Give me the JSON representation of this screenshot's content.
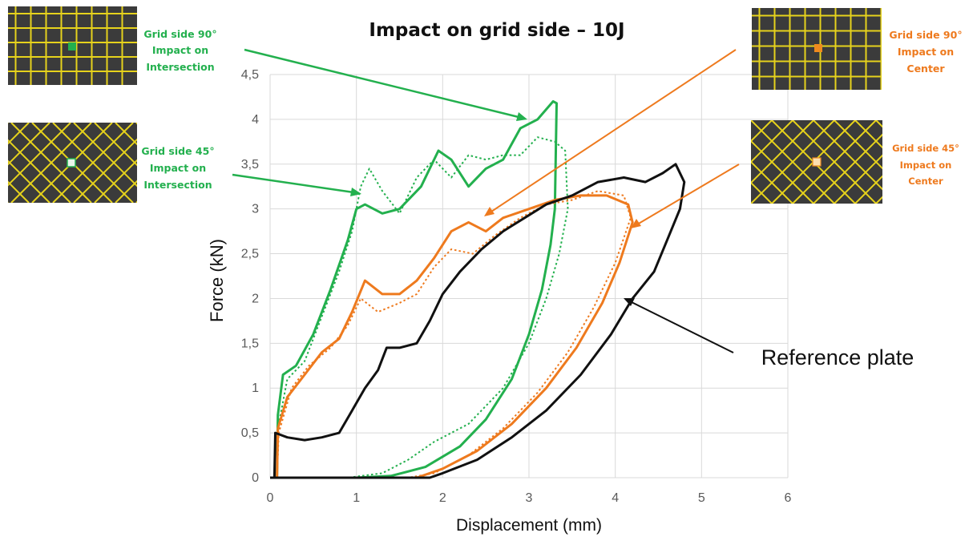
{
  "colors": {
    "green": "#23b04e",
    "orange": "#ee7a1e",
    "black": "#111111",
    "grid": "#d9d9d9",
    "inset_bg": "#3b3b3b",
    "inset_line": "#e6d21c"
  },
  "chart_data": {
    "type": "line",
    "title": "Impact on grid side – 10J",
    "xlabel": "Displacement (mm)",
    "ylabel": "Force (kN)",
    "xlim": [
      0,
      6
    ],
    "ylim": [
      0,
      4.5
    ],
    "x_ticks": [
      "0",
      "1",
      "2",
      "3",
      "4",
      "5",
      "6"
    ],
    "y_ticks": [
      "0",
      "0,5",
      "1",
      "1,5",
      "2",
      "2,5",
      "3",
      "3,5",
      "4",
      "4,5"
    ],
    "grid": true,
    "series": [
      {
        "color": "green",
        "style": "solid",
        "points": [
          [
            0.08,
            0
          ],
          [
            0.09,
            0.7
          ],
          [
            0.15,
            1.15
          ],
          [
            0.3,
            1.25
          ],
          [
            0.5,
            1.6
          ],
          [
            0.7,
            2.1
          ],
          [
            0.9,
            2.65
          ],
          [
            1.0,
            3.0
          ],
          [
            1.1,
            3.05
          ],
          [
            1.3,
            2.95
          ],
          [
            1.5,
            3.0
          ],
          [
            1.75,
            3.25
          ],
          [
            1.95,
            3.65
          ],
          [
            2.1,
            3.55
          ],
          [
            2.3,
            3.25
          ],
          [
            2.5,
            3.45
          ],
          [
            2.7,
            3.55
          ],
          [
            2.9,
            3.9
          ],
          [
            3.1,
            4.0
          ],
          [
            3.28,
            4.2
          ],
          [
            3.32,
            4.18
          ],
          [
            3.3,
            3.0
          ],
          [
            3.25,
            2.6
          ],
          [
            3.15,
            2.1
          ],
          [
            3.0,
            1.6
          ],
          [
            2.8,
            1.1
          ],
          [
            2.5,
            0.65
          ],
          [
            2.2,
            0.35
          ],
          [
            1.8,
            0.12
          ],
          [
            1.4,
            0.02
          ],
          [
            1.0,
            0.0
          ],
          [
            0.0,
            0.0
          ]
        ]
      },
      {
        "color": "green",
        "style": "dotted",
        "points": [
          [
            0.08,
            0
          ],
          [
            0.1,
            0.6
          ],
          [
            0.2,
            1.1
          ],
          [
            0.4,
            1.3
          ],
          [
            0.6,
            1.8
          ],
          [
            0.8,
            2.3
          ],
          [
            0.95,
            2.75
          ],
          [
            1.05,
            3.25
          ],
          [
            1.15,
            3.45
          ],
          [
            1.3,
            3.2
          ],
          [
            1.5,
            2.95
          ],
          [
            1.7,
            3.35
          ],
          [
            1.9,
            3.55
          ],
          [
            2.1,
            3.35
          ],
          [
            2.3,
            3.6
          ],
          [
            2.5,
            3.55
          ],
          [
            2.7,
            3.6
          ],
          [
            2.9,
            3.6
          ],
          [
            3.1,
            3.8
          ],
          [
            3.3,
            3.75
          ],
          [
            3.42,
            3.65
          ],
          [
            3.45,
            3.0
          ],
          [
            3.35,
            2.5
          ],
          [
            3.2,
            2.0
          ],
          [
            3.0,
            1.5
          ],
          [
            2.7,
            1.0
          ],
          [
            2.3,
            0.6
          ],
          [
            1.9,
            0.4
          ],
          [
            1.6,
            0.2
          ],
          [
            1.3,
            0.05
          ],
          [
            0.9,
            0.0
          ],
          [
            0.0,
            0.0
          ]
        ]
      },
      {
        "color": "orange",
        "style": "solid",
        "points": [
          [
            0.08,
            0
          ],
          [
            0.09,
            0.55
          ],
          [
            0.2,
            0.9
          ],
          [
            0.4,
            1.15
          ],
          [
            0.6,
            1.4
          ],
          [
            0.8,
            1.55
          ],
          [
            0.95,
            1.85
          ],
          [
            1.1,
            2.2
          ],
          [
            1.3,
            2.05
          ],
          [
            1.5,
            2.05
          ],
          [
            1.7,
            2.2
          ],
          [
            1.9,
            2.45
          ],
          [
            2.1,
            2.75
          ],
          [
            2.3,
            2.85
          ],
          [
            2.5,
            2.75
          ],
          [
            2.7,
            2.9
          ],
          [
            3.0,
            3.0
          ],
          [
            3.3,
            3.1
          ],
          [
            3.6,
            3.15
          ],
          [
            3.9,
            3.15
          ],
          [
            4.15,
            3.05
          ],
          [
            4.2,
            2.85
          ],
          [
            4.05,
            2.4
          ],
          [
            3.85,
            1.95
          ],
          [
            3.55,
            1.45
          ],
          [
            3.2,
            1.0
          ],
          [
            2.8,
            0.6
          ],
          [
            2.4,
            0.3
          ],
          [
            2.0,
            0.1
          ],
          [
            1.7,
            0.0
          ],
          [
            0.0,
            0.0
          ]
        ]
      },
      {
        "color": "orange",
        "style": "dotted",
        "points": [
          [
            0.08,
            0
          ],
          [
            0.1,
            0.5
          ],
          [
            0.25,
            1.0
          ],
          [
            0.45,
            1.25
          ],
          [
            0.7,
            1.45
          ],
          [
            0.9,
            1.7
          ],
          [
            1.05,
            2.0
          ],
          [
            1.25,
            1.85
          ],
          [
            1.5,
            1.95
          ],
          [
            1.7,
            2.05
          ],
          [
            1.9,
            2.35
          ],
          [
            2.1,
            2.55
          ],
          [
            2.35,
            2.5
          ],
          [
            2.6,
            2.7
          ],
          [
            2.9,
            2.9
          ],
          [
            3.2,
            3.05
          ],
          [
            3.5,
            3.1
          ],
          [
            3.8,
            3.2
          ],
          [
            4.1,
            3.15
          ],
          [
            4.18,
            2.9
          ],
          [
            4.0,
            2.4
          ],
          [
            3.75,
            1.9
          ],
          [
            3.45,
            1.4
          ],
          [
            3.1,
            0.95
          ],
          [
            2.7,
            0.55
          ],
          [
            2.3,
            0.25
          ],
          [
            1.9,
            0.05
          ],
          [
            1.6,
            0.0
          ],
          [
            0.0,
            0.0
          ]
        ]
      },
      {
        "color": "black",
        "style": "solid",
        "points": [
          [
            0.05,
            0
          ],
          [
            0.06,
            0.5
          ],
          [
            0.2,
            0.45
          ],
          [
            0.4,
            0.42
          ],
          [
            0.6,
            0.45
          ],
          [
            0.8,
            0.5
          ],
          [
            0.95,
            0.75
          ],
          [
            1.1,
            1.0
          ],
          [
            1.25,
            1.2
          ],
          [
            1.35,
            1.45
          ],
          [
            1.5,
            1.45
          ],
          [
            1.7,
            1.5
          ],
          [
            1.85,
            1.75
          ],
          [
            2.0,
            2.05
          ],
          [
            2.2,
            2.3
          ],
          [
            2.45,
            2.55
          ],
          [
            2.7,
            2.75
          ],
          [
            2.95,
            2.9
          ],
          [
            3.2,
            3.05
          ],
          [
            3.5,
            3.15
          ],
          [
            3.8,
            3.3
          ],
          [
            4.1,
            3.35
          ],
          [
            4.35,
            3.3
          ],
          [
            4.55,
            3.4
          ],
          [
            4.7,
            3.5
          ],
          [
            4.8,
            3.3
          ],
          [
            4.75,
            3.0
          ],
          [
            4.6,
            2.65
          ],
          [
            4.45,
            2.3
          ],
          [
            4.2,
            2.0
          ],
          [
            3.95,
            1.6
          ],
          [
            3.6,
            1.15
          ],
          [
            3.2,
            0.75
          ],
          [
            2.8,
            0.45
          ],
          [
            2.4,
            0.2
          ],
          [
            2.0,
            0.05
          ],
          [
            1.85,
            0.0
          ],
          [
            0.0,
            0.0
          ]
        ]
      }
    ],
    "annotations": {
      "g90": [
        "Grid side 90°",
        "Impact on",
        "Intersection"
      ],
      "g45": [
        "Grid side 45°",
        "Impact on",
        "Intersection"
      ],
      "o90": [
        "Grid side 90°",
        "Impact on",
        "Center"
      ],
      "o45": [
        "Grid side 45°",
        "Impact on",
        "Center"
      ],
      "ref": "Reference plate"
    }
  }
}
